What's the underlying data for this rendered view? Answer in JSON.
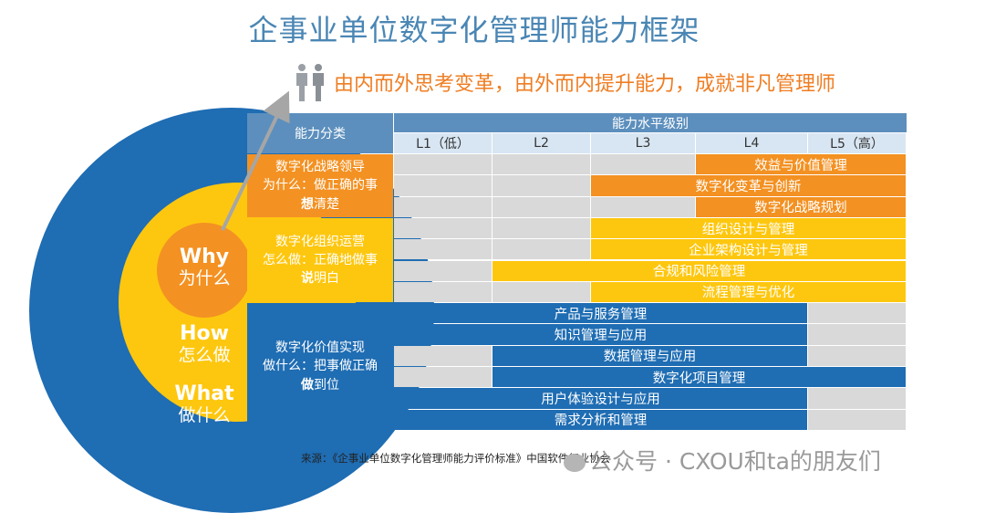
{
  "title": "企事业单位数字化管理师能力框架",
  "subtitle": "由内而外思考变革，由外而内提升能力，成就非凡管理师",
  "icons": [
    "people-icon",
    "arrow-icon",
    "wechat-icon"
  ],
  "colors": {
    "blue": "#1f6db3",
    "yellow": "#fec70f",
    "orange": "#f39122",
    "header": "#5c8fbd",
    "level_header": "#d8e6f3",
    "gray": "#d9d9d9"
  },
  "circles": {
    "why": {
      "en": "Why",
      "zh": "为什么"
    },
    "how": {
      "en": "How",
      "zh": "怎么做"
    },
    "what": {
      "en": "What",
      "zh": "做什么"
    }
  },
  "table": {
    "category_header": "能力分类",
    "level_header": "能力水平级别",
    "levels": [
      "L1（低）",
      "L2",
      "L3",
      "L4",
      "L5（高）"
    ]
  },
  "categories": [
    {
      "name": "数字化战略领导",
      "line2": "为什么：做正确的事",
      "line3_bold": "想",
      "line3_rest": "清楚",
      "color": "#f39122",
      "bars": [
        {
          "label": "效益与价值管理",
          "start_level": 4,
          "end_level": 5
        },
        {
          "label": "数字化变革与创新",
          "start_level": 3,
          "end_level": 5
        },
        {
          "label": "数字化战略规划",
          "start_level": 4,
          "end_level": 5
        }
      ]
    },
    {
      "name": "数字化组织运营",
      "line2": "怎么做：正确地做事",
      "line3_bold": "说",
      "line3_rest": "明白",
      "color": "#fec70f",
      "bars": [
        {
          "label": "组织设计与管理",
          "start_level": 3,
          "end_level": 5
        },
        {
          "label": "企业架构设计与管理",
          "start_level": 3,
          "end_level": 5
        },
        {
          "label": "合规和风险管理",
          "start_level": 2,
          "end_level": 5
        },
        {
          "label": "流程管理与优化",
          "start_level": 3,
          "end_level": 5
        }
      ]
    },
    {
      "name": "数字化价值实现",
      "line2": "做什么：把事做正确",
      "line3_bold": "做",
      "line3_rest": "到位",
      "color": "#1f6db3",
      "bars": [
        {
          "label": "产品与服务管理",
          "start_level": 1,
          "end_level": 4
        },
        {
          "label": "知识管理与应用",
          "start_level": 1,
          "end_level": 4
        },
        {
          "label": "数据管理与应用",
          "start_level": 2,
          "end_level": 4
        },
        {
          "label": "数字化项目管理",
          "start_level": 2,
          "end_level": 5
        },
        {
          "label": "用户体验设计与应用",
          "start_level": 1,
          "end_level": 4
        },
        {
          "label": "需求分析和管理",
          "start_level": 1,
          "end_level": 4
        }
      ]
    }
  ],
  "source": "来源：《企事业单位数字化管理师能力评价标准》中国软件行业协会",
  "watermark": "公众号 · CXOU和ta的朋友们"
}
